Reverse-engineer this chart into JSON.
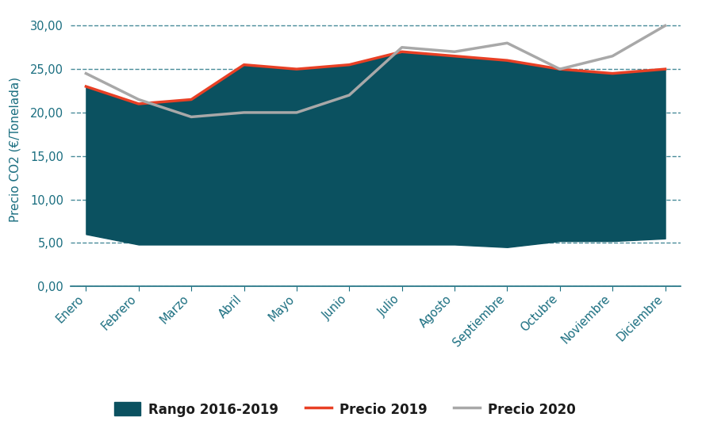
{
  "months": [
    "Enero",
    "Febrero",
    "Marzo",
    "Abril",
    "Mayo",
    "Junio",
    "Julio",
    "Agosto",
    "Septiembre",
    "Octubre",
    "Noviembre",
    "Diciembre"
  ],
  "precio_2019": [
    23.0,
    21.0,
    21.5,
    25.5,
    25.0,
    25.5,
    27.0,
    26.5,
    26.0,
    25.0,
    24.5,
    25.0
  ],
  "precio_2020": [
    24.5,
    21.5,
    19.5,
    20.0,
    20.0,
    22.0,
    27.5,
    27.0,
    28.0,
    25.0,
    26.5,
    30.0
  ],
  "rango_upper": [
    23.0,
    21.0,
    21.5,
    25.5,
    25.0,
    25.5,
    27.0,
    26.5,
    26.0,
    25.0,
    24.5,
    25.0
  ],
  "rango_lower": [
    6.0,
    4.8,
    4.8,
    4.8,
    4.8,
    4.8,
    4.8,
    4.8,
    4.5,
    5.2,
    5.2,
    5.5
  ],
  "range_color": "#0b5160",
  "line_2019_color": "#e84025",
  "line_2020_color": "#a8a8a8",
  "grid_color": "#1a6e80",
  "text_color": "#1a6e80",
  "ylabel": "Precio CO2 (€/Tonelada)",
  "yticks": [
    0.0,
    5.0,
    10.0,
    15.0,
    20.0,
    25.0,
    30.0
  ],
  "ylim": [
    0.0,
    31.5
  ],
  "legend_labels": [
    "Rango 2016-2019",
    "Precio 2019",
    "Precio 2020"
  ],
  "background_color": "#ffffff",
  "axis_fontsize": 11,
  "tick_fontsize": 10.5,
  "legend_fontsize": 12
}
